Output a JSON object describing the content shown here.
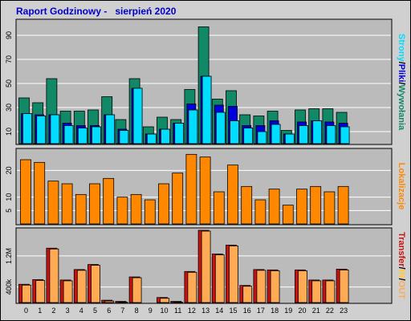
{
  "title": "Raport Godzinowy -   sierpień 2020",
  "colors": {
    "background": "#d0d0d0",
    "plot_bg": "#bbbbbb",
    "grid": "#ffffff",
    "strony": "#118866",
    "pliki": "#0000dd",
    "wywolania": "#00ddff",
    "lokalizacje": "#ff8800",
    "transfer": "#cc1111",
    "in": "#ffcc33",
    "out": "#ffaa55"
  },
  "legend_top": [
    "Strony",
    "Pliki",
    "Wywołania"
  ],
  "legend_top_sep": "/",
  "legend_mid": "Lokalizacje",
  "legend_bottom": [
    "Transfer",
    "IN",
    "OUT"
  ],
  "legend_bottom_sep": "/",
  "chart_data": [
    {
      "type": "bar",
      "title": "",
      "categories": [
        "0",
        "1",
        "2",
        "3",
        "4",
        "5",
        "6",
        "7",
        "8",
        "9",
        "10",
        "11",
        "12",
        "13",
        "14",
        "15",
        "16",
        "17",
        "18",
        "19",
        "20",
        "21",
        "22",
        "23"
      ],
      "ylabel": "Strony/Pliki/Wywołania",
      "yticks": [
        10,
        30,
        50,
        70,
        90
      ],
      "ylim": [
        0,
        100
      ],
      "grid": true,
      "series": [
        {
          "name": "Strony",
          "values": [
            38,
            34,
            54,
            27,
            27,
            28,
            39,
            20,
            54,
            14,
            22,
            20,
            45,
            97,
            37,
            44,
            24,
            23,
            27,
            11,
            28,
            29,
            29,
            26
          ]
        },
        {
          "name": "Pliki",
          "values": [
            25,
            24,
            24,
            17,
            15,
            15,
            24,
            12,
            46,
            8,
            12,
            17,
            33,
            56,
            32,
            31,
            15,
            15,
            19,
            8,
            18,
            19,
            18,
            17
          ]
        },
        {
          "name": "Wywołania",
          "values": [
            25,
            23,
            24,
            15,
            13,
            14,
            24,
            11,
            46,
            8,
            12,
            17,
            28,
            56,
            26,
            19,
            13,
            10,
            16,
            8,
            15,
            19,
            15,
            14
          ]
        }
      ]
    },
    {
      "type": "bar",
      "title": "",
      "categories": [
        "0",
        "1",
        "2",
        "3",
        "4",
        "5",
        "6",
        "7",
        "8",
        "9",
        "10",
        "11",
        "12",
        "13",
        "14",
        "15",
        "16",
        "17",
        "18",
        "19",
        "20",
        "21",
        "22",
        "23"
      ],
      "ylabel": "Lokalizacje",
      "yticks": [
        5,
        10,
        20
      ],
      "ylim": [
        0,
        27
      ],
      "grid": true,
      "series": [
        {
          "name": "Lokalizacje",
          "values": [
            24,
            23,
            16,
            15,
            11,
            15,
            17,
            10,
            11,
            9,
            15,
            19,
            26,
            25,
            12,
            22,
            14,
            9,
            13,
            7,
            13,
            14,
            12,
            14
          ]
        }
      ]
    },
    {
      "type": "bar",
      "title": "",
      "categories": [
        "0",
        "1",
        "2",
        "3",
        "4",
        "5",
        "6",
        "7",
        "8",
        "9",
        "10",
        "11",
        "12",
        "13",
        "14",
        "15",
        "16",
        "17",
        "18",
        "19",
        "20",
        "21",
        "22",
        "23"
      ],
      "xlabel": "",
      "ylabel": "Transfer/IN/OUT",
      "yticks": [
        "400k",
        "1.2M"
      ],
      "ytick_values": [
        400000,
        1200000
      ],
      "ylim": [
        0,
        1860000
      ],
      "grid": true,
      "series": [
        {
          "name": "Transfer",
          "values": [
            470000,
            590000,
            1400000,
            580000,
            850000,
            980000,
            60000,
            30000,
            660000,
            0,
            130000,
            30000,
            800000,
            1860000,
            1250000,
            1480000,
            440000,
            850000,
            840000,
            0,
            840000,
            580000,
            580000,
            860000
          ]
        }
      ]
    }
  ]
}
